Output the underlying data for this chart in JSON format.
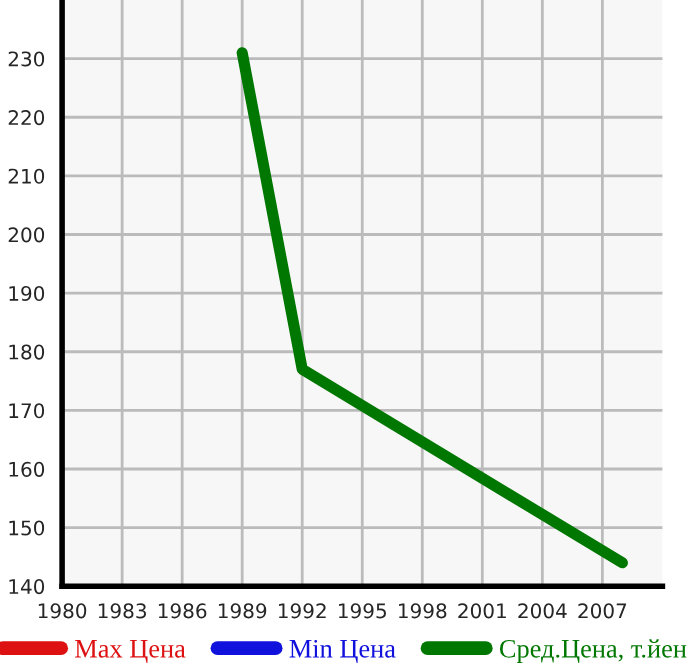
{
  "chart_data": {
    "type": "line",
    "x": [
      1989,
      1992,
      2008
    ],
    "series": [
      {
        "name": "Max Цена",
        "color": "#dd1111",
        "values": [
          null,
          null,
          null
        ]
      },
      {
        "name": "Min Цена",
        "color": "#1111dd",
        "values": [
          null,
          null,
          null
        ]
      },
      {
        "name": "Сред.Цена, т.йен",
        "color": "#007700",
        "values": [
          231,
          177,
          144
        ]
      }
    ],
    "xlim": [
      1980,
      2010
    ],
    "xticks": [
      1980,
      1983,
      1986,
      1989,
      1992,
      1995,
      1998,
      2001,
      2004,
      2007
    ],
    "ylim": [
      140,
      240
    ],
    "yticks": [
      140,
      150,
      160,
      170,
      180,
      190,
      200,
      210,
      220,
      230
    ],
    "grid": true,
    "legend": "bottom",
    "marker": "none",
    "line_style": "solid"
  }
}
